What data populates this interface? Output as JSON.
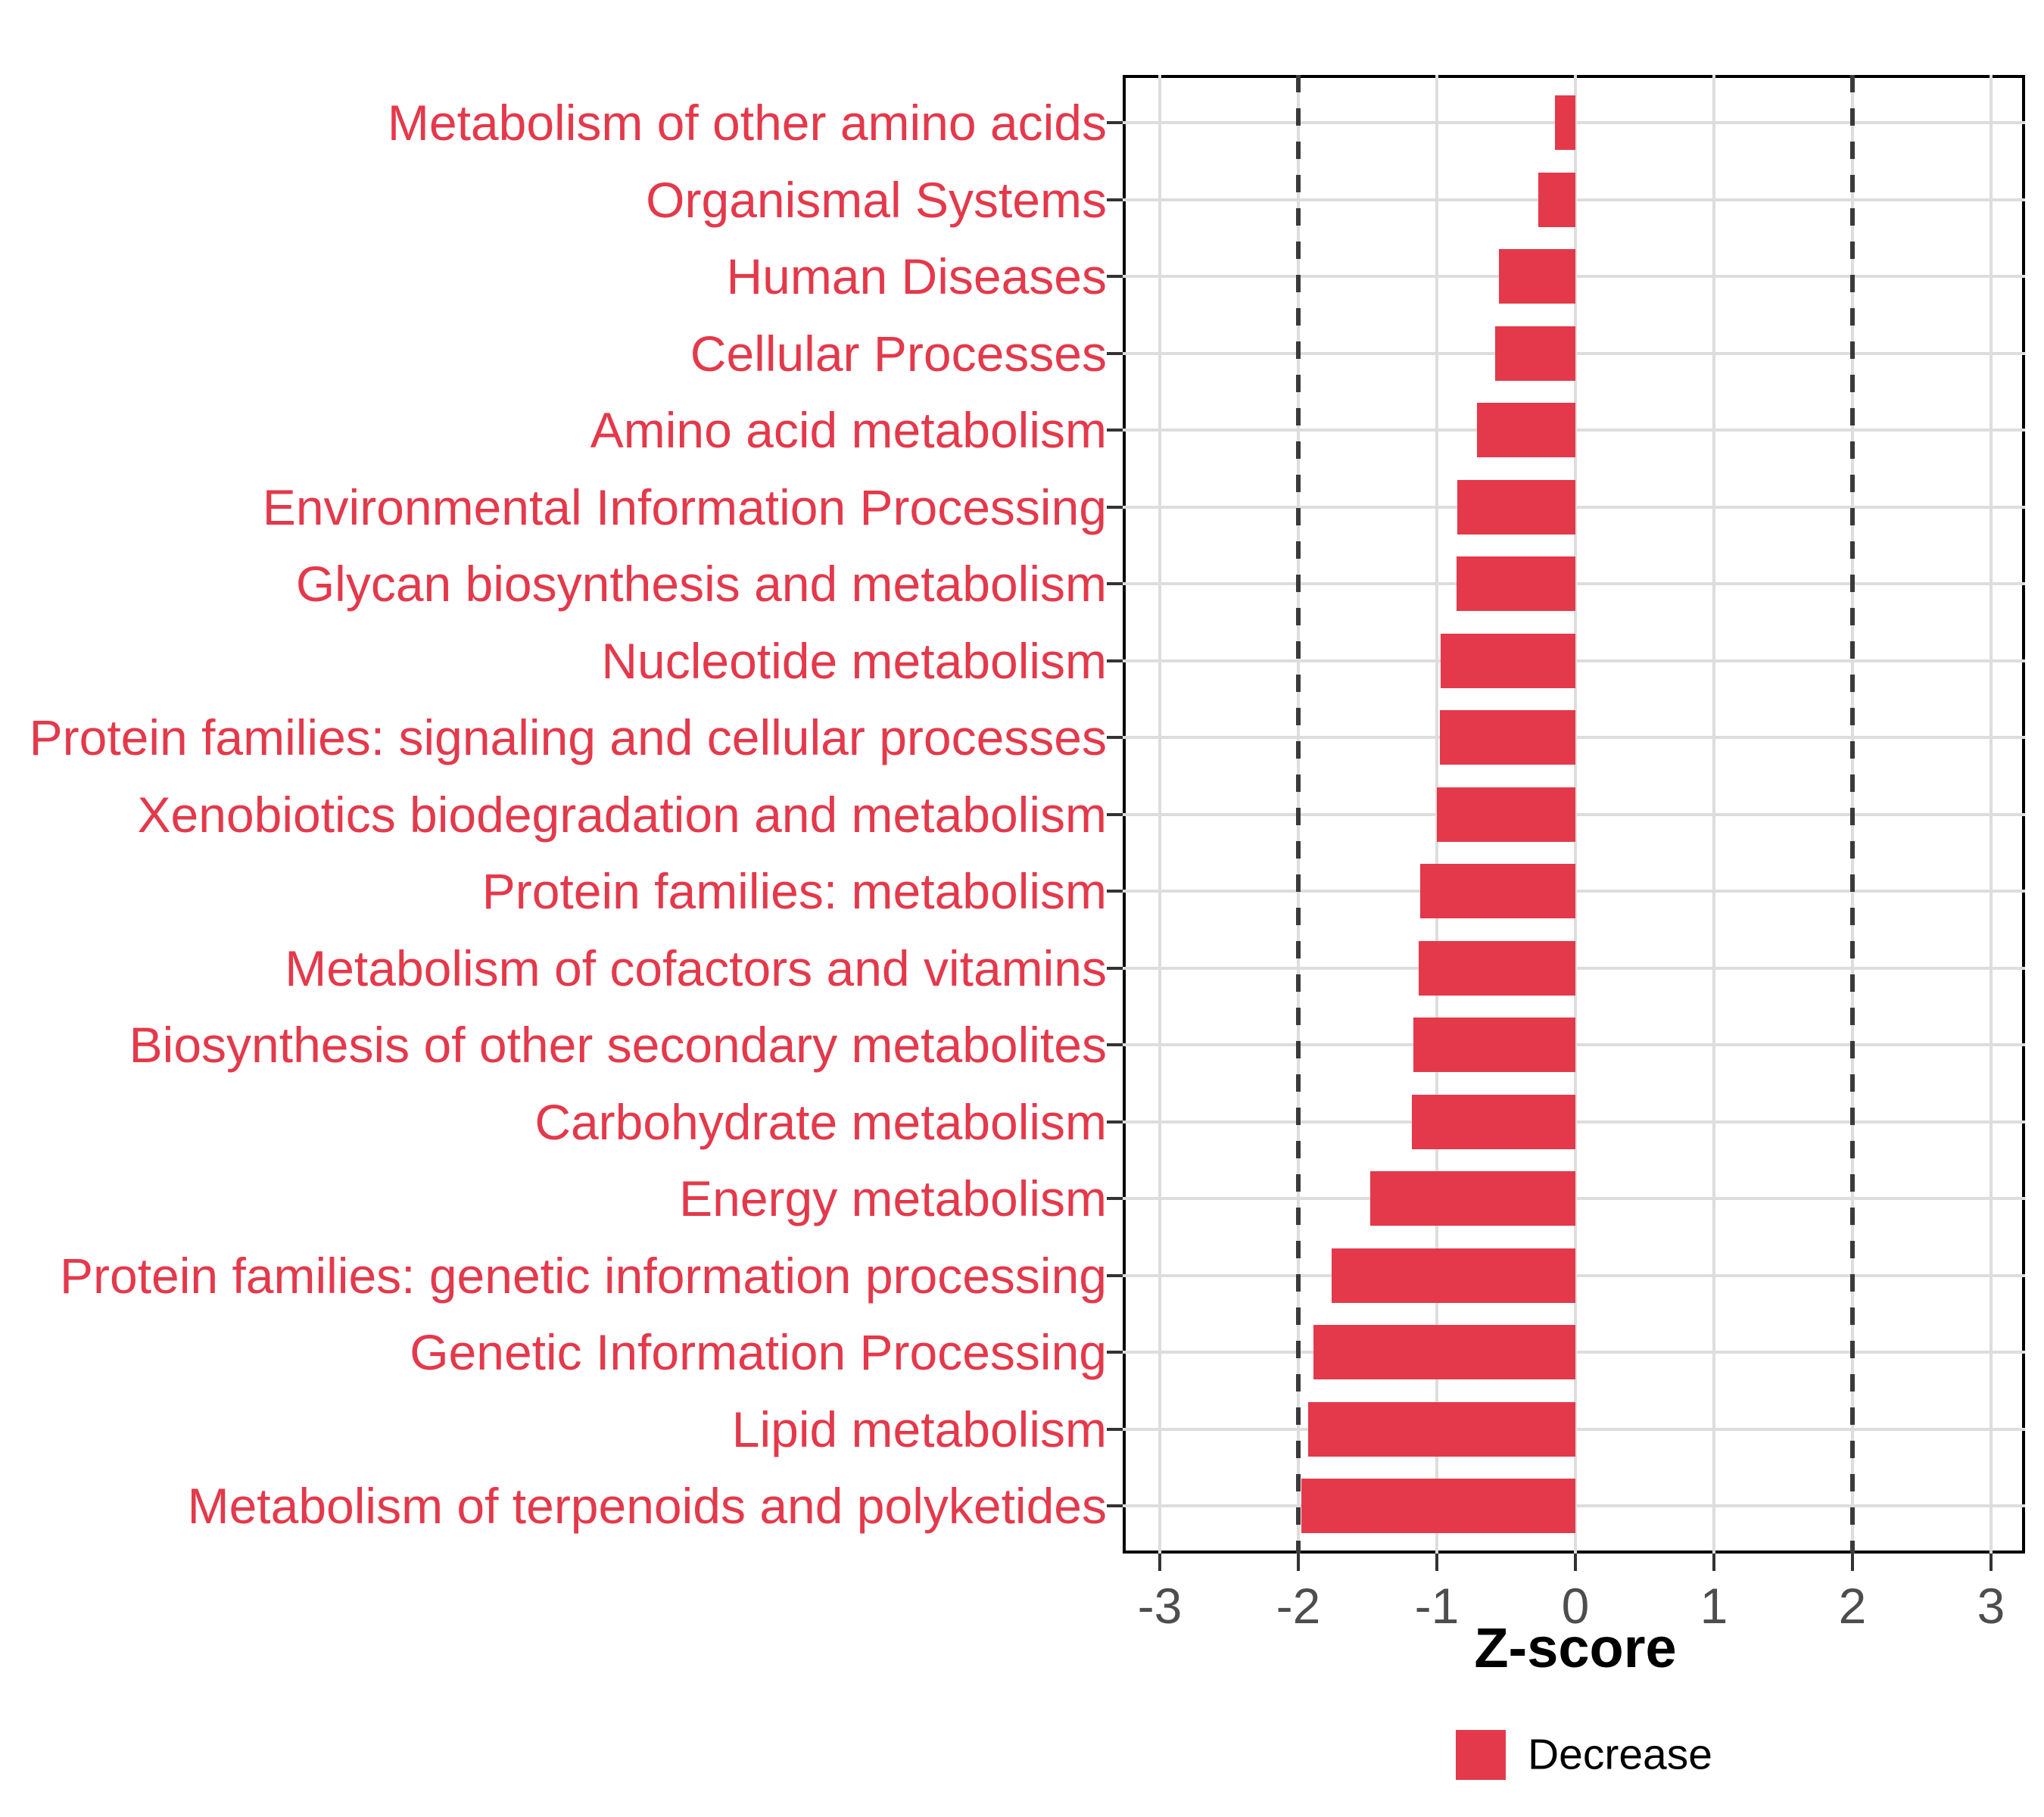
{
  "chart_data": {
    "type": "bar",
    "orientation": "horizontal",
    "title": "",
    "xlabel": "Z-score",
    "ylabel": "",
    "categories": [
      "Metabolism of other amino acids",
      "Organismal Systems",
      "Human Diseases",
      "Cellular Processes",
      "Amino acid metabolism",
      "Environmental Information Processing",
      "Glycan biosynthesis and metabolism",
      "Nucleotide metabolism",
      "Protein families: signaling and cellular processes",
      "Xenobiotics biodegradation and metabolism",
      "Protein families: metabolism",
      "Metabolism of cofactors and vitamins",
      "Biosynthesis of other secondary metabolites",
      "Carbohydrate metabolism",
      "Energy metabolism",
      "Protein families: genetic information processing",
      "Genetic Information Processing",
      "Lipid metabolism",
      "Metabolism of terpenoids and polyketides"
    ],
    "values": [
      -0.15,
      -0.27,
      -0.55,
      -0.58,
      -0.71,
      -0.85,
      -0.86,
      -0.97,
      -0.98,
      -1.0,
      -1.12,
      -1.13,
      -1.17,
      -1.18,
      -1.48,
      -1.76,
      -1.89,
      -1.93,
      -1.98
    ],
    "series_name": "Decrease",
    "xlim": [
      -3.3,
      3.3
    ],
    "x_ticks": [
      -3,
      -2,
      -1,
      0,
      1,
      2,
      3
    ],
    "x_tick_labels": [
      "-3",
      "-2",
      "-1",
      "0",
      "1",
      "2",
      "3"
    ],
    "reference_lines": [
      -2,
      2
    ],
    "grid": "major",
    "legend_position": "bottom",
    "colors": {
      "bar": "#e4394b",
      "category_label": "#e4394b",
      "axis_tick_text": "#4d4d4d",
      "axis_title": "#000000",
      "gridline": "#dddddd",
      "reference_line": "#3a3a3a",
      "panel_border": "#000000",
      "background": "#ffffff"
    }
  },
  "legend": {
    "items": [
      {
        "label": "Decrease",
        "color": "#e4394b"
      }
    ]
  }
}
